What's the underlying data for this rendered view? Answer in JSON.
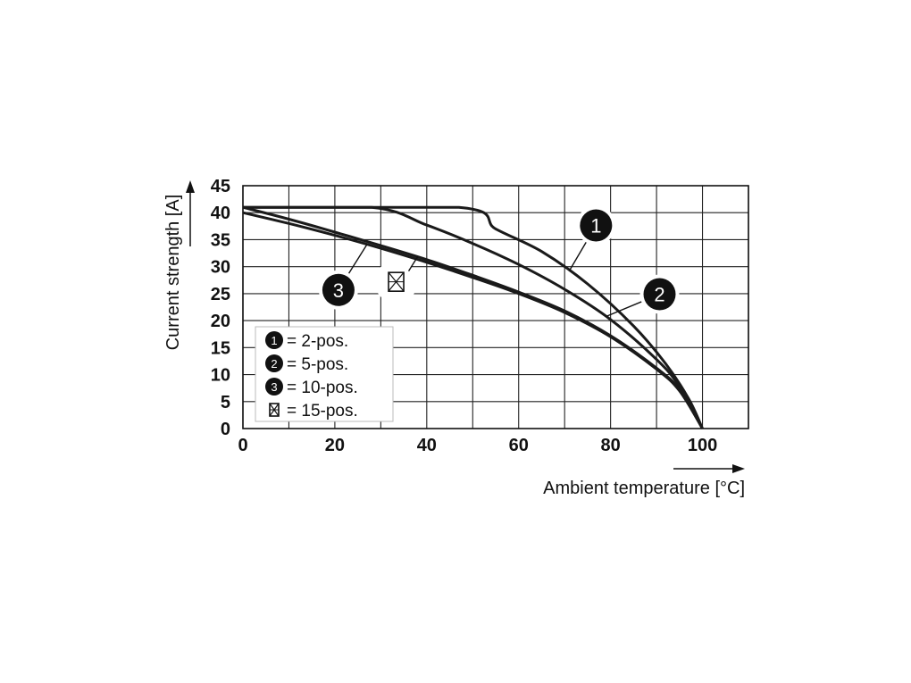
{
  "chart_data": {
    "type": "line",
    "title": "",
    "xlabel": "Ambient temperature [°C]",
    "ylabel": "Current strength [A]",
    "xlim": [
      0,
      110
    ],
    "ylim": [
      0,
      45
    ],
    "x_ticks": [
      "0",
      "20",
      "40",
      "60",
      "80",
      "100"
    ],
    "y_ticks": [
      "0",
      "5",
      "10",
      "15",
      "20",
      "25",
      "30",
      "35",
      "40",
      "45"
    ],
    "grid": true,
    "legend_position": "bottom-left",
    "legend": [
      {
        "marker": "1",
        "label": "= 2-pos."
      },
      {
        "marker": "2",
        "label": "= 5-pos."
      },
      {
        "marker": "3",
        "label": "= 10-pos."
      },
      {
        "marker": "15-pos-icon",
        "label": "= 15-pos."
      }
    ],
    "series": [
      {
        "marker": "1",
        "x": [
          0,
          47,
          55,
          65,
          75,
          85,
          92,
          97,
          100
        ],
        "y": [
          41,
          41,
          37,
          32.8,
          26.8,
          19,
          12,
          5.5,
          0
        ]
      },
      {
        "marker": "2",
        "x": [
          0,
          28,
          40,
          50,
          60,
          70,
          80,
          90,
          95,
          100
        ],
        "y": [
          41,
          41,
          37.7,
          34.3,
          30.4,
          25.8,
          20.2,
          12.8,
          7.8,
          0
        ]
      },
      {
        "marker": "3",
        "x": [
          0,
          10,
          20,
          30,
          40,
          50,
          60,
          70,
          80,
          90,
          95,
          100
        ],
        "y": [
          40,
          38,
          35.8,
          33.4,
          30.8,
          28,
          25,
          21.5,
          17,
          11,
          7,
          0
        ]
      },
      {
        "marker": "15-pos-icon",
        "x": [
          0,
          10,
          20,
          30,
          40,
          50,
          60,
          70,
          80,
          90,
          95,
          100
        ],
        "y": [
          41,
          38.8,
          36.4,
          33.9,
          31.3,
          28.4,
          25.3,
          21.8,
          17.2,
          11.2,
          7.2,
          0
        ]
      }
    ],
    "annotations": [
      {
        "text": "1",
        "series": "1",
        "at_x": 71
      },
      {
        "text": "2",
        "series": "2",
        "at_x": 79
      },
      {
        "text": "3",
        "series": "3",
        "at_x": 27
      },
      {
        "text": "15-pos-icon",
        "series": "15-pos-icon",
        "at_x": 38
      }
    ]
  }
}
